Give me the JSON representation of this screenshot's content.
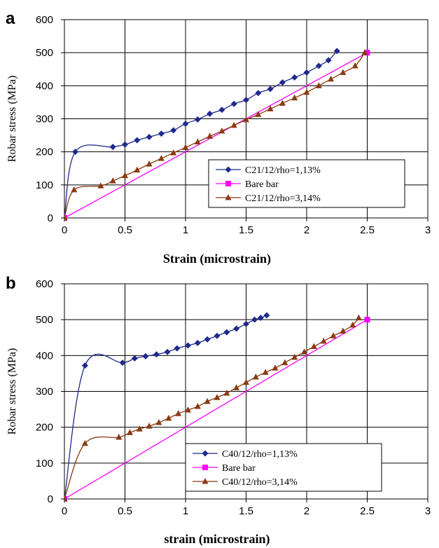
{
  "chart_data": [
    {
      "panel": "a",
      "type": "line",
      "xlabel": "Strain (microstrain)",
      "ylabel": "Robar stress (MPa)",
      "xlim": [
        0,
        3
      ],
      "ylim": [
        0,
        600
      ],
      "xticks": [
        "0",
        "0.5",
        "1",
        "1.5",
        "2",
        "2.5",
        "3"
      ],
      "yticks": [
        "0",
        "100",
        "200",
        "300",
        "400",
        "500",
        "600"
      ],
      "grid": true,
      "legend_position": "bottom-right",
      "series": [
        {
          "name": "C21/12/rho=1,13%",
          "color": "#1f2a8c",
          "marker": "diamond",
          "x": [
            0,
            0.09,
            0.4,
            0.5,
            0.6,
            0.7,
            0.8,
            0.9,
            1.0,
            1.1,
            1.2,
            1.3,
            1.4,
            1.5,
            1.6,
            1.7,
            1.8,
            1.9,
            2.0,
            2.1,
            2.18,
            2.25
          ],
          "y": [
            0,
            200,
            215,
            222,
            235,
            245,
            255,
            265,
            285,
            298,
            315,
            327,
            345,
            357,
            378,
            390,
            410,
            425,
            440,
            460,
            477,
            505
          ]
        },
        {
          "name": "Bare bar",
          "color": "#ff00ff",
          "marker": "square",
          "x": [
            0,
            2.5
          ],
          "y": [
            0,
            500
          ]
        },
        {
          "name": "C21/12/rho=3,14%",
          "color": "#8b3a12",
          "marker": "triangle",
          "x": [
            0,
            0.08,
            0.3,
            0.4,
            0.5,
            0.6,
            0.7,
            0.8,
            0.9,
            1.0,
            1.1,
            1.2,
            1.3,
            1.4,
            1.5,
            1.6,
            1.7,
            1.8,
            1.9,
            2.0,
            2.1,
            2.2,
            2.3,
            2.4,
            2.48
          ],
          "y": [
            0,
            85,
            97,
            112,
            128,
            145,
            163,
            180,
            197,
            213,
            230,
            247,
            263,
            280,
            297,
            313,
            330,
            347,
            363,
            380,
            400,
            420,
            440,
            460,
            500
          ]
        }
      ]
    },
    {
      "panel": "b",
      "type": "line",
      "xlabel": "strain (microstrain)",
      "ylabel": "Robar stress (MPa)",
      "xlim": [
        0,
        3
      ],
      "ylim": [
        0,
        600
      ],
      "xticks": [
        "0",
        "0.5",
        "1",
        "1.5",
        "2",
        "2.5",
        "3"
      ],
      "yticks": [
        "0",
        "100",
        "200",
        "300",
        "400",
        "500",
        "600"
      ],
      "grid": true,
      "legend_position": "bottom-right",
      "series": [
        {
          "name": "C40/12/rho=1,13%",
          "color": "#1f2a8c",
          "marker": "diamond",
          "x": [
            0,
            0.17,
            0.48,
            0.58,
            0.67,
            0.76,
            0.85,
            0.93,
            1.02,
            1.1,
            1.18,
            1.26,
            1.34,
            1.42,
            1.5,
            1.57,
            1.62,
            1.67
          ],
          "y": [
            0,
            372,
            380,
            392,
            398,
            403,
            410,
            420,
            428,
            435,
            445,
            455,
            465,
            475,
            488,
            500,
            505,
            512
          ]
        },
        {
          "name": "Bare bar",
          "color": "#ff00ff",
          "marker": "square",
          "x": [
            0,
            2.5
          ],
          "y": [
            0,
            500
          ]
        },
        {
          "name": "C40/12/rho=3,14%",
          "color": "#8b3a12",
          "marker": "triangle",
          "x": [
            0,
            0.17,
            0.45,
            0.54,
            0.62,
            0.7,
            0.78,
            0.86,
            0.94,
            1.02,
            1.1,
            1.18,
            1.26,
            1.34,
            1.42,
            1.5,
            1.58,
            1.66,
            1.74,
            1.82,
            1.9,
            1.98,
            2.06,
            2.14,
            2.22,
            2.3,
            2.38,
            2.43
          ],
          "y": [
            0,
            155,
            172,
            185,
            195,
            203,
            213,
            225,
            238,
            248,
            258,
            272,
            283,
            295,
            310,
            325,
            340,
            353,
            365,
            380,
            395,
            410,
            425,
            440,
            455,
            468,
            485,
            505
          ]
        }
      ]
    }
  ]
}
